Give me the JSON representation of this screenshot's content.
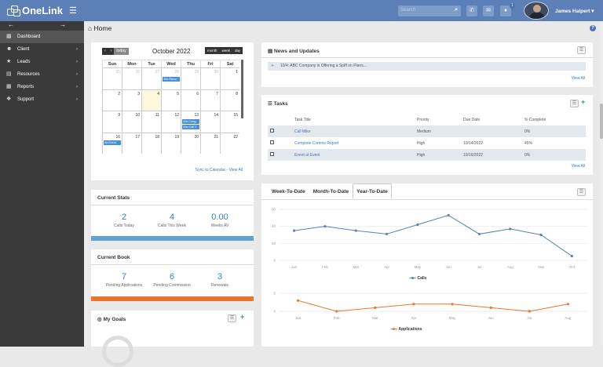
{
  "app": {
    "name": "OneLink"
  },
  "topbar": {
    "search_placeholder": "Search",
    "user_name": "James Halpert",
    "notification_count": "1"
  },
  "sidebar": {
    "items": [
      {
        "label": "Dashboard",
        "icon": "chart-icon"
      },
      {
        "label": "Client",
        "icon": "users-icon"
      },
      {
        "label": "Leads",
        "icon": "star-icon"
      },
      {
        "label": "Resources",
        "icon": "document-icon"
      },
      {
        "label": "Reports",
        "icon": "report-icon"
      },
      {
        "label": "Support",
        "icon": "wrench-icon"
      }
    ]
  },
  "breadcrumb": {
    "label": "Home"
  },
  "calendar": {
    "today_label": "today",
    "month_label": "month",
    "week_label": "week",
    "day_label": "day",
    "title": "October 2022",
    "days": [
      "Sun",
      "Mon",
      "Tue",
      "Wed",
      "Thu",
      "Fri",
      "Sat"
    ],
    "weeks": [
      [
        "25",
        "26",
        "27",
        "28",
        "29",
        "30",
        "1"
      ],
      [
        "2",
        "3",
        "4",
        "5",
        "6",
        "7",
        "8"
      ],
      [
        "9",
        "10",
        "11",
        "12",
        "13",
        "14",
        "15"
      ],
      [
        "16",
        "17",
        "18",
        "19",
        "20",
        "21",
        "22"
      ]
    ],
    "events": [
      "10a Recur",
      "10a Cong",
      "10a Call V",
      "9a Event"
    ],
    "sync_link": "Sync to Calendar - View All"
  },
  "current_stats": {
    "title": "Current Stats",
    "items": [
      {
        "value": "2",
        "label": "Calls Today"
      },
      {
        "value": "4",
        "label": "Calls This Week"
      },
      {
        "value": "0.00",
        "label": "Weeks AV"
      }
    ],
    "bar_color": "#5ea3d3"
  },
  "current_book": {
    "title": "Current Book",
    "items": [
      {
        "value": "7",
        "label": "Pending Applications"
      },
      {
        "value": "6",
        "label": "Pending Commission"
      },
      {
        "value": "3",
        "label": "Renewals"
      }
    ],
    "bar_color": "#e8762d"
  },
  "goals": {
    "title": "My Goals"
  },
  "news": {
    "title": "News and Updates",
    "items": [
      "10/4: ABC Company is Offering a Spiff on Plans..."
    ],
    "view_all": "View All"
  },
  "tasks": {
    "title": "Tasks",
    "columns": [
      "Task Title",
      "Priority",
      "Due Date",
      "% Complete"
    ],
    "rows": [
      {
        "title": "Call Mike",
        "priority": "Medium",
        "due": "",
        "complete": "0%"
      },
      {
        "title": "Complete Comms Report",
        "priority": "High",
        "due": "10/14/2022",
        "complete": "45%"
      },
      {
        "title": "Event at Event",
        "priority": "High",
        "due": "10/16/2022",
        "complete": "0%"
      }
    ],
    "view_all": "View All"
  },
  "performance": {
    "tabs": [
      "Week-To-Date",
      "Month-To-Date",
      "Year-To-Date"
    ],
    "active_tab": 2
  },
  "chart_data": [
    {
      "type": "line",
      "title": "",
      "x": [
        "Jan",
        "Feb",
        "Mar",
        "Apr",
        "May",
        "Jun",
        "Jul",
        "Aug",
        "Sep",
        "Oct"
      ],
      "series": [
        {
          "name": "Calls",
          "values": [
            35,
            40,
            35,
            31,
            42,
            53,
            31,
            37,
            30,
            5
          ],
          "color": "#5b7fb6"
        }
      ],
      "ylim": [
        0,
        60
      ],
      "yticks": [
        "0",
        "20",
        "40",
        "60"
      ],
      "grid": true,
      "legend": "bottom"
    },
    {
      "type": "line",
      "title": "",
      "x": [
        "Jan",
        "Feb",
        "Mar",
        "Apr",
        "May",
        "Jun",
        "Jul",
        "Aug"
      ],
      "series": [
        {
          "name": "Applications",
          "values": [
            3,
            0,
            1,
            2,
            2,
            1,
            0,
            2
          ],
          "color": "#e8762d"
        }
      ],
      "ylim": [
        0,
        5
      ],
      "yticks": [
        "0",
        "5"
      ],
      "grid": true,
      "legend": "bottom"
    }
  ]
}
